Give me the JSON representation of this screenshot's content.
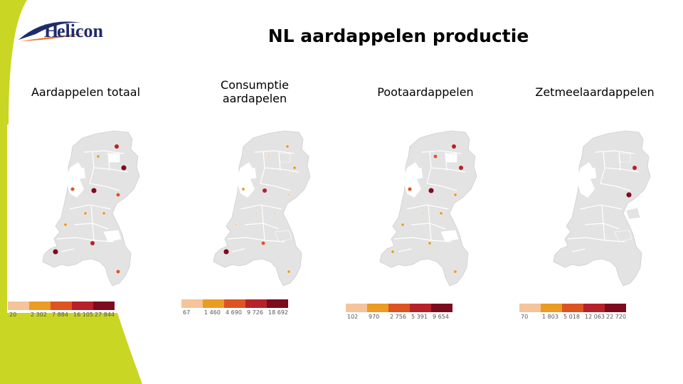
{
  "page": {
    "title": "NL aardappelen productie"
  },
  "logo": {
    "text": "Helicon"
  },
  "colors": {
    "accent_lime": "#c9d624",
    "logo_navy": "#1f2c6b",
    "logo_orange": "#e6752a",
    "map_fill": "#e3e3e3",
    "map_border": "#ffffff",
    "scale": [
      "#f5c49b",
      "#eb9c22",
      "#dd5422",
      "#b72129",
      "#7c0c1e"
    ]
  },
  "maps": [
    {
      "label": "Aardappelen totaal",
      "legend_values": [
        "20",
        "2 302",
        "7 884",
        "16 105",
        "27 844"
      ],
      "highlight_colors": [
        "#ffffff",
        "#ffffff",
        "#ffffff",
        "#ffffff"
      ]
    },
    {
      "label": "Consumptie aardapelen",
      "legend_values": [
        "67",
        "1 460",
        "4 690",
        "9 726",
        "18 692"
      ],
      "highlight_colors": [
        "#e3e3e3",
        "#ffffff",
        "#ffffff",
        "#e3e3e3"
      ]
    },
    {
      "label": "Pootaardappelen",
      "legend_values": [
        "102",
        "970",
        "2 756",
        "5 391",
        "9 654"
      ],
      "highlight_colors": [
        "#ffffff",
        "#ffffff",
        "#ffffff",
        "#ffffff"
      ]
    },
    {
      "label": "Zetmeelaardappelen",
      "legend_values": [
        "70",
        "1 803",
        "5 018",
        "12 063",
        "22 720"
      ],
      "highlight_colors": [
        "#e3e3e3",
        "#e3e3e3",
        "#ffffff",
        "#e3e3e3"
      ]
    }
  ]
}
